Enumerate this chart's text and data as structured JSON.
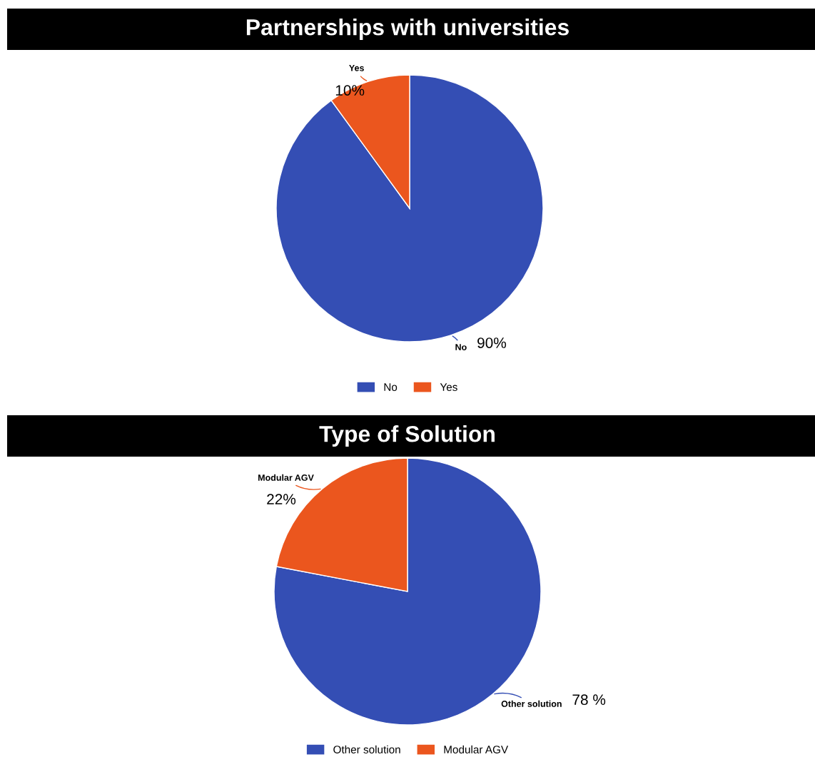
{
  "chart_data": [
    {
      "type": "pie",
      "title": "Partnerships with universities",
      "categories": [
        "No",
        "Yes"
      ],
      "values": [
        90,
        10
      ],
      "colors": [
        "#344eb4",
        "#eb561e"
      ],
      "value_labels": [
        "90%",
        "10%"
      ],
      "legend": "bottom"
    },
    {
      "type": "pie",
      "title": "Type of Solution",
      "categories": [
        "Other solution",
        "Modular AGV"
      ],
      "values": [
        78,
        22
      ],
      "colors": [
        "#344eb4",
        "#eb561e"
      ],
      "value_labels": [
        "78 %",
        "22%"
      ],
      "legend": "bottom"
    }
  ]
}
